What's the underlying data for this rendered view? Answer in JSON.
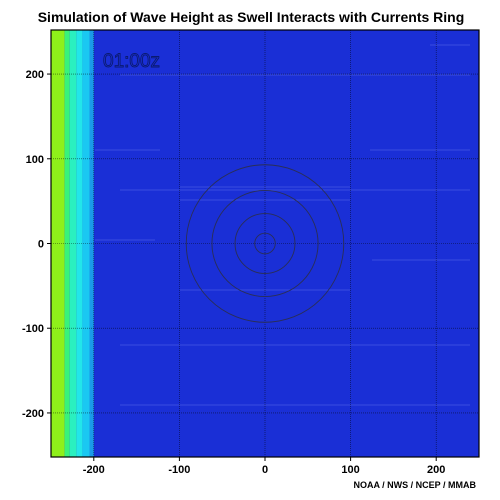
{
  "chart_data": {
    "type": "heatmap",
    "title": "Simulation of Wave Height as Swell Interacts with Currents Ring",
    "xlabel": "",
    "ylabel": "",
    "xlim": [
      -250,
      250
    ],
    "ylim": [
      -252,
      252
    ],
    "x_ticks": [
      -200,
      -100,
      0,
      100,
      200
    ],
    "y_ticks": [
      200,
      100,
      0,
      -100,
      -200
    ],
    "x_tick_labels": [
      "-200",
      "-100",
      "0",
      "100",
      "200"
    ],
    "y_tick_labels": [
      "200",
      "100",
      "0",
      "-100",
      "-200"
    ],
    "grid": true,
    "background_color": "#1a2fd6",
    "bands": [
      {
        "x_from": -250,
        "x_to": -234,
        "color": "#8ff01a"
      },
      {
        "x_from": -234,
        "x_to": -228,
        "color": "#3af27a"
      },
      {
        "x_from": -228,
        "x_to": -220,
        "color": "#2af0c0"
      },
      {
        "x_from": -220,
        "x_to": -213,
        "color": "#22e6ea"
      },
      {
        "x_from": -213,
        "x_to": -205,
        "color": "#1ac8f2"
      },
      {
        "x_from": -205,
        "x_to": -200,
        "color": "#1a9ae8"
      }
    ],
    "rings": {
      "center": [
        0,
        0
      ],
      "radii": [
        12,
        35,
        62,
        92
      ],
      "color": "#2a2e55"
    },
    "time_label": "01:00z",
    "credit": "NOAA / NWS / NCEP / MMAB"
  }
}
